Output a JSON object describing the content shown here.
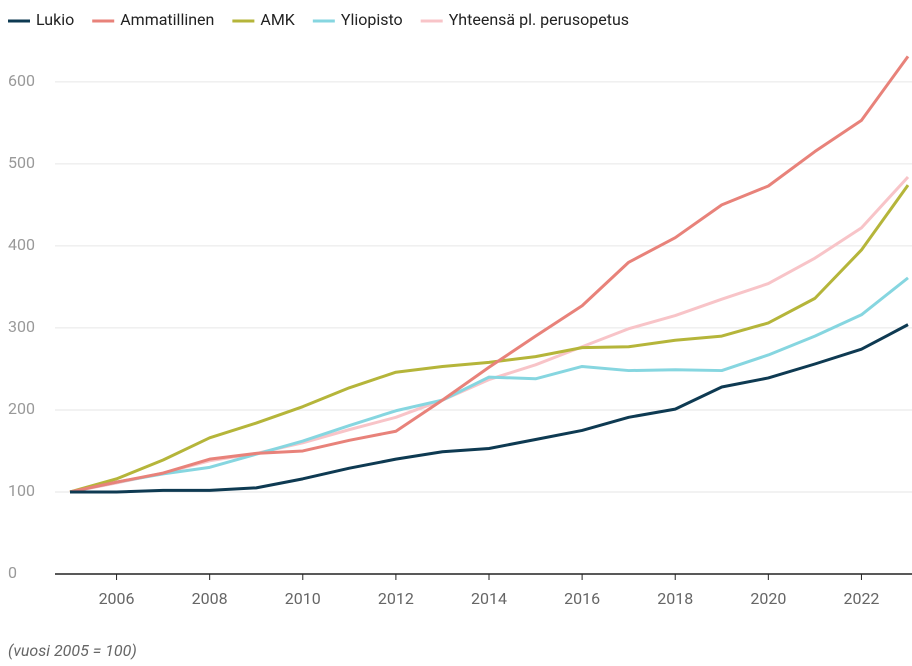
{
  "chart_data": {
    "type": "line",
    "x": [
      2005,
      2006,
      2007,
      2008,
      2009,
      2010,
      2011,
      2012,
      2013,
      2014,
      2015,
      2016,
      2017,
      2018,
      2019,
      2020,
      2021,
      2022,
      2023
    ],
    "series": [
      {
        "name": "Lukio",
        "color": "#0e3a52",
        "values": [
          100,
          100,
          102,
          102,
          105,
          116,
          129,
          140,
          149,
          153,
          164,
          175,
          191,
          201,
          228,
          239,
          256,
          274,
          304
        ]
      },
      {
        "name": "Ammatillinen",
        "color": "#e8827a",
        "values": [
          100,
          112,
          123,
          140,
          147,
          150,
          163,
          174,
          212,
          252,
          290,
          327,
          380,
          410,
          450,
          473,
          515,
          553,
          631
        ]
      },
      {
        "name": "AMK",
        "color": "#b5b53a",
        "values": [
          100,
          116,
          139,
          166,
          184,
          204,
          227,
          246,
          253,
          258,
          265,
          276,
          277,
          285,
          290,
          306,
          336,
          395,
          474
        ]
      },
      {
        "name": "Yliopisto",
        "color": "#86d6e0",
        "values": [
          100,
          112,
          122,
          130,
          146,
          162,
          181,
          199,
          212,
          240,
          238,
          253,
          248,
          249,
          248,
          267,
          290,
          316,
          361
        ]
      },
      {
        "name": "Yhteensä pl. perusopetus",
        "color": "#f8c4c8",
        "values": [
          100,
          111,
          123,
          138,
          147,
          160,
          176,
          191,
          212,
          237,
          255,
          277,
          299,
          315,
          335,
          354,
          385,
          422,
          484
        ]
      }
    ],
    "xlim": [
      2005,
      2023
    ],
    "xticks": [
      2006,
      2008,
      2010,
      2012,
      2014,
      2016,
      2018,
      2020,
      2022
    ],
    "ylim": [
      0,
      640
    ],
    "yticks": [
      0,
      100,
      200,
      300,
      400,
      500,
      600
    ],
    "grid": true,
    "legend": "top",
    "note": "(vuosi 2005 = 100)"
  }
}
